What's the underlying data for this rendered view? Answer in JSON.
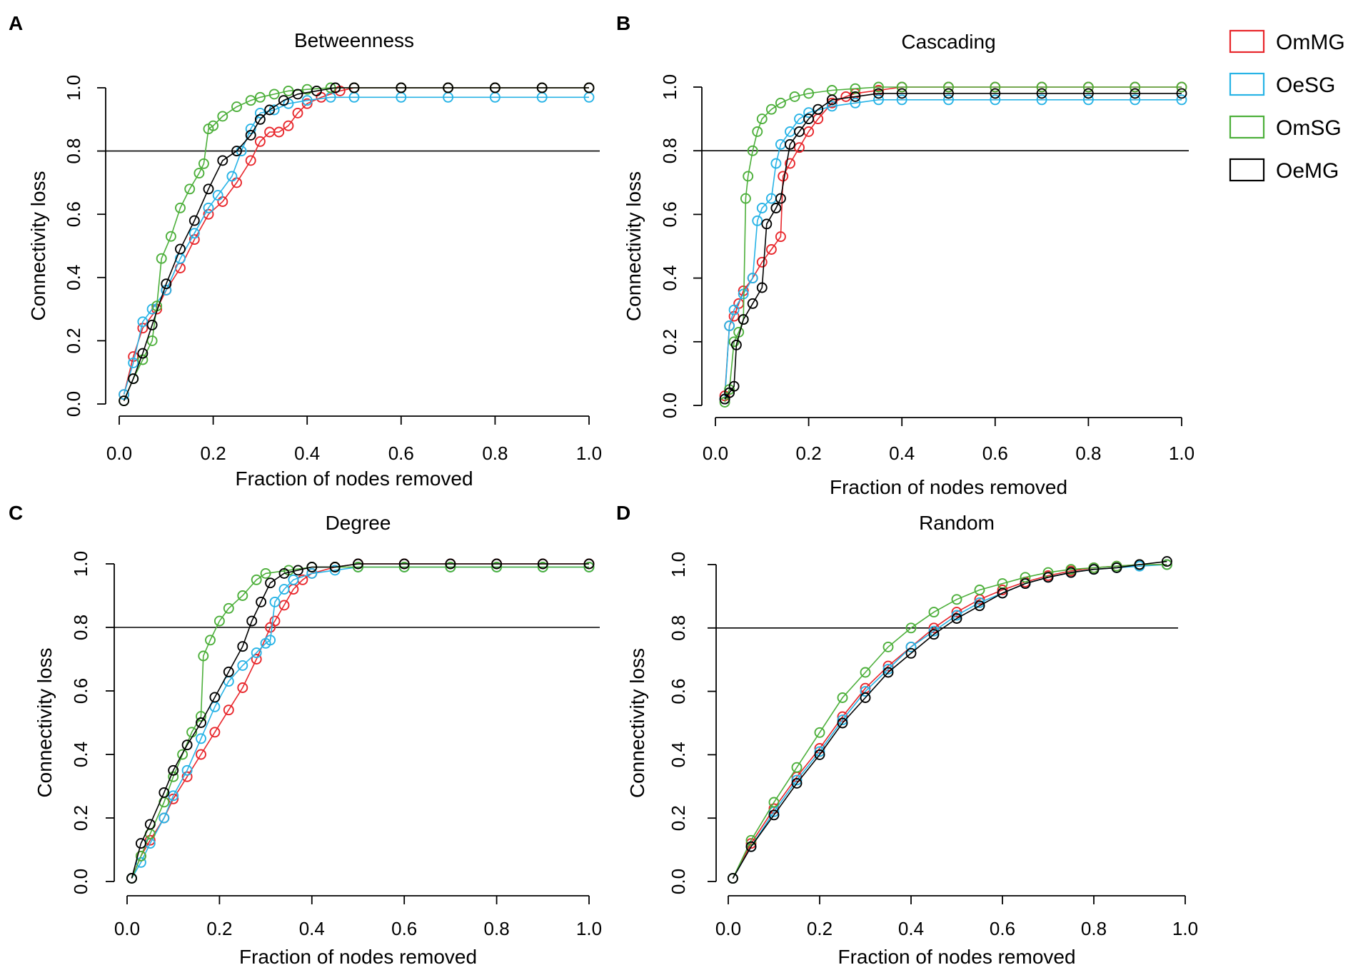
{
  "chart_data": [
    {
      "type": "scatter",
      "panel": "A",
      "title": "Betweenness",
      "xlabel": "Fraction of nodes removed",
      "ylabel": "Connectivity loss",
      "xlim": [
        0,
        1
      ],
      "ylim": [
        0,
        1
      ],
      "xticks": [
        "0.0",
        "0.2",
        "0.4",
        "0.6",
        "0.8",
        "1.0"
      ],
      "yticks": [
        "0.0",
        "0.2",
        "0.4",
        "0.6",
        "0.8",
        "1.0"
      ],
      "threshold": 0.8,
      "series": [
        {
          "name": "OmMG",
          "color": "#e8262b",
          "x": [
            0.01,
            0.03,
            0.05,
            0.08,
            0.1,
            0.13,
            0.16,
            0.19,
            0.22,
            0.25,
            0.28,
            0.3,
            0.32,
            0.34,
            0.36,
            0.38,
            0.4,
            0.43,
            0.47,
            0.5,
            0.6,
            0.7,
            0.8,
            0.9,
            1.0
          ],
          "y": [
            0.03,
            0.15,
            0.24,
            0.3,
            0.36,
            0.43,
            0.52,
            0.6,
            0.64,
            0.7,
            0.77,
            0.83,
            0.86,
            0.86,
            0.88,
            0.92,
            0.95,
            0.97,
            0.99,
            1.0,
            1.0,
            1.0,
            1.0,
            1.0,
            1.0
          ]
        },
        {
          "name": "OeSG",
          "color": "#27b3e6",
          "x": [
            0.01,
            0.03,
            0.05,
            0.07,
            0.1,
            0.13,
            0.16,
            0.19,
            0.21,
            0.24,
            0.26,
            0.28,
            0.3,
            0.33,
            0.36,
            0.4,
            0.45,
            0.5,
            0.6,
            0.7,
            0.8,
            0.9,
            1.0
          ],
          "y": [
            0.03,
            0.13,
            0.26,
            0.3,
            0.36,
            0.46,
            0.54,
            0.62,
            0.66,
            0.72,
            0.8,
            0.87,
            0.92,
            0.93,
            0.95,
            0.96,
            0.97,
            0.97,
            0.97,
            0.97,
            0.97,
            0.97,
            0.97
          ]
        },
        {
          "name": "OmSG",
          "color": "#4caf3a",
          "x": [
            0.01,
            0.03,
            0.05,
            0.07,
            0.08,
            0.09,
            0.11,
            0.13,
            0.15,
            0.17,
            0.18,
            0.19,
            0.2,
            0.22,
            0.25,
            0.28,
            0.3,
            0.33,
            0.36,
            0.4,
            0.45,
            0.5,
            0.6,
            0.7,
            0.8,
            0.9,
            1.0
          ],
          "y": [
            0.01,
            0.08,
            0.14,
            0.2,
            0.31,
            0.46,
            0.53,
            0.62,
            0.68,
            0.73,
            0.76,
            0.87,
            0.88,
            0.91,
            0.94,
            0.96,
            0.97,
            0.98,
            0.99,
            0.995,
            1.0,
            1.0,
            1.0,
            1.0,
            1.0,
            1.0,
            1.0
          ]
        },
        {
          "name": "OeMG",
          "color": "#000000",
          "x": [
            0.01,
            0.03,
            0.05,
            0.07,
            0.1,
            0.13,
            0.16,
            0.19,
            0.22,
            0.25,
            0.28,
            0.3,
            0.32,
            0.35,
            0.38,
            0.42,
            0.46,
            0.5,
            0.6,
            0.7,
            0.8,
            0.9,
            1.0
          ],
          "y": [
            0.01,
            0.08,
            0.16,
            0.25,
            0.38,
            0.49,
            0.58,
            0.68,
            0.77,
            0.8,
            0.85,
            0.9,
            0.93,
            0.96,
            0.98,
            0.99,
            1.0,
            1.0,
            1.0,
            1.0,
            1.0,
            1.0,
            1.0
          ]
        }
      ]
    },
    {
      "type": "scatter",
      "panel": "B",
      "title": "Cascading",
      "xlabel": "Fraction of nodes removed",
      "ylabel": "Connectivity loss",
      "xlim": [
        0,
        1
      ],
      "ylim": [
        0,
        1
      ],
      "xticks": [
        "0.0",
        "0.2",
        "0.4",
        "0.6",
        "0.8",
        "1.0"
      ],
      "yticks": [
        "0.0",
        "0.2",
        "0.4",
        "0.6",
        "0.8",
        "1.0"
      ],
      "threshold": 0.8,
      "series": [
        {
          "name": "OmMG",
          "color": "#e8262b",
          "x": [
            0.02,
            0.03,
            0.04,
            0.05,
            0.06,
            0.08,
            0.1,
            0.12,
            0.14,
            0.145,
            0.16,
            0.18,
            0.2,
            0.22,
            0.25,
            0.28,
            0.3,
            0.35,
            0.4,
            0.5,
            0.6,
            0.7,
            0.8,
            0.9,
            1.0
          ],
          "y": [
            0.03,
            0.25,
            0.28,
            0.32,
            0.36,
            0.4,
            0.45,
            0.49,
            0.53,
            0.72,
            0.76,
            0.81,
            0.86,
            0.9,
            0.95,
            0.97,
            0.98,
            0.99,
            1.0,
            1.0,
            1.0,
            1.0,
            1.0,
            1.0,
            1.0
          ]
        },
        {
          "name": "OeSG",
          "color": "#27b3e6",
          "x": [
            0.02,
            0.03,
            0.04,
            0.06,
            0.08,
            0.09,
            0.1,
            0.12,
            0.13,
            0.14,
            0.16,
            0.18,
            0.2,
            0.25,
            0.3,
            0.35,
            0.4,
            0.5,
            0.6,
            0.7,
            0.8,
            0.9,
            1.0
          ],
          "y": [
            0.02,
            0.25,
            0.3,
            0.35,
            0.4,
            0.58,
            0.62,
            0.65,
            0.76,
            0.82,
            0.86,
            0.9,
            0.92,
            0.94,
            0.95,
            0.96,
            0.96,
            0.96,
            0.96,
            0.96,
            0.96,
            0.96,
            0.96
          ]
        },
        {
          "name": "OmSG",
          "color": "#4caf3a",
          "x": [
            0.02,
            0.03,
            0.04,
            0.05,
            0.06,
            0.065,
            0.07,
            0.08,
            0.09,
            0.1,
            0.12,
            0.14,
            0.17,
            0.2,
            0.25,
            0.3,
            0.35,
            0.4,
            0.5,
            0.6,
            0.7,
            0.8,
            0.9,
            1.0
          ],
          "y": [
            0.01,
            0.05,
            0.2,
            0.23,
            0.27,
            0.65,
            0.72,
            0.8,
            0.86,
            0.9,
            0.93,
            0.95,
            0.97,
            0.98,
            0.99,
            0.995,
            1.0,
            1.0,
            1.0,
            1.0,
            1.0,
            1.0,
            1.0,
            1.0
          ]
        },
        {
          "name": "OeMG",
          "color": "#000000",
          "x": [
            0.02,
            0.03,
            0.04,
            0.045,
            0.06,
            0.08,
            0.1,
            0.11,
            0.13,
            0.14,
            0.16,
            0.18,
            0.2,
            0.22,
            0.25,
            0.3,
            0.35,
            0.4,
            0.5,
            0.6,
            0.7,
            0.8,
            0.9,
            1.0
          ],
          "y": [
            0.02,
            0.04,
            0.06,
            0.19,
            0.27,
            0.32,
            0.37,
            0.57,
            0.62,
            0.65,
            0.82,
            0.86,
            0.9,
            0.93,
            0.96,
            0.97,
            0.98,
            0.98,
            0.98,
            0.98,
            0.98,
            0.98,
            0.98,
            0.98
          ]
        }
      ]
    },
    {
      "type": "scatter",
      "panel": "C",
      "title": "Degree",
      "xlabel": "Fraction of nodes removed",
      "ylabel": "Connectivity loss",
      "xlim": [
        0,
        1
      ],
      "ylim": [
        0,
        1
      ],
      "xticks": [
        "0.0",
        "0.2",
        "0.4",
        "0.6",
        "0.8",
        "1.0"
      ],
      "yticks": [
        "0.0",
        "0.2",
        "0.4",
        "0.6",
        "0.8",
        "1.0"
      ],
      "threshold": 0.8,
      "series": [
        {
          "name": "OmMG",
          "color": "#e8262b",
          "x": [
            0.01,
            0.03,
            0.05,
            0.08,
            0.1,
            0.13,
            0.16,
            0.19,
            0.22,
            0.25,
            0.28,
            0.31,
            0.32,
            0.34,
            0.36,
            0.38,
            0.4,
            0.45,
            0.5,
            0.6,
            0.7,
            0.8,
            0.9,
            1.0
          ],
          "y": [
            0.01,
            0.08,
            0.13,
            0.2,
            0.26,
            0.33,
            0.4,
            0.47,
            0.54,
            0.61,
            0.7,
            0.8,
            0.82,
            0.87,
            0.92,
            0.95,
            0.97,
            0.99,
            1.0,
            1.0,
            1.0,
            1.0,
            1.0,
            1.0
          ]
        },
        {
          "name": "OeSG",
          "color": "#27b3e6",
          "x": [
            0.01,
            0.03,
            0.05,
            0.08,
            0.1,
            0.13,
            0.16,
            0.19,
            0.22,
            0.25,
            0.28,
            0.3,
            0.31,
            0.32,
            0.34,
            0.36,
            0.4,
            0.45,
            0.5,
            0.6,
            0.7,
            0.8,
            0.9,
            1.0
          ],
          "y": [
            0.01,
            0.06,
            0.12,
            0.2,
            0.27,
            0.35,
            0.45,
            0.55,
            0.63,
            0.68,
            0.72,
            0.75,
            0.76,
            0.88,
            0.92,
            0.95,
            0.97,
            0.98,
            0.99,
            0.99,
            0.99,
            0.99,
            0.99,
            0.99
          ]
        },
        {
          "name": "OmSG",
          "color": "#4caf3a",
          "x": [
            0.01,
            0.03,
            0.05,
            0.08,
            0.1,
            0.12,
            0.14,
            0.16,
            0.165,
            0.18,
            0.2,
            0.22,
            0.25,
            0.28,
            0.3,
            0.35,
            0.4,
            0.45,
            0.5,
            0.6,
            0.7,
            0.8,
            0.9,
            1.0
          ],
          "y": [
            0.01,
            0.08,
            0.15,
            0.25,
            0.33,
            0.4,
            0.47,
            0.52,
            0.71,
            0.76,
            0.82,
            0.86,
            0.9,
            0.95,
            0.97,
            0.98,
            0.99,
            0.99,
            0.99,
            0.99,
            0.99,
            0.99,
            0.99,
            0.99
          ]
        },
        {
          "name": "OeMG",
          "color": "#000000",
          "x": [
            0.01,
            0.03,
            0.05,
            0.08,
            0.1,
            0.13,
            0.16,
            0.19,
            0.22,
            0.25,
            0.27,
            0.29,
            0.31,
            0.34,
            0.37,
            0.4,
            0.45,
            0.5,
            0.6,
            0.7,
            0.8,
            0.9,
            1.0
          ],
          "y": [
            0.01,
            0.12,
            0.18,
            0.28,
            0.35,
            0.43,
            0.5,
            0.58,
            0.66,
            0.74,
            0.82,
            0.88,
            0.94,
            0.97,
            0.98,
            0.99,
            0.99,
            1.0,
            1.0,
            1.0,
            1.0,
            1.0,
            1.0
          ]
        }
      ]
    },
    {
      "type": "scatter",
      "panel": "D",
      "title": "Random",
      "xlabel": "Fraction of nodes removed",
      "ylabel": "Connectivity loss",
      "xlim": [
        0,
        1
      ],
      "ylim": [
        0,
        1
      ],
      "xticks": [
        "0.0",
        "0.2",
        "0.4",
        "0.6",
        "0.8",
        "1.0"
      ],
      "yticks": [
        "0.0",
        "0.2",
        "0.4",
        "0.6",
        "0.8",
        "1.0"
      ],
      "threshold": 0.8,
      "series": [
        {
          "name": "OmMG",
          "color": "#e8262b",
          "x": [
            0.01,
            0.05,
            0.1,
            0.15,
            0.2,
            0.25,
            0.3,
            0.35,
            0.4,
            0.45,
            0.5,
            0.55,
            0.6,
            0.65,
            0.7,
            0.75,
            0.8,
            0.85,
            0.9,
            0.96
          ],
          "y": [
            0.01,
            0.12,
            0.23,
            0.33,
            0.42,
            0.52,
            0.61,
            0.68,
            0.74,
            0.8,
            0.85,
            0.89,
            0.92,
            0.945,
            0.965,
            0.98,
            0.99,
            0.995,
            1.0,
            1.0
          ]
        },
        {
          "name": "OeSG",
          "color": "#27b3e6",
          "x": [
            0.01,
            0.05,
            0.1,
            0.15,
            0.2,
            0.25,
            0.3,
            0.35,
            0.4,
            0.45,
            0.5,
            0.55,
            0.6,
            0.65,
            0.7,
            0.75,
            0.8,
            0.85,
            0.9,
            0.96
          ],
          "y": [
            0.01,
            0.11,
            0.22,
            0.32,
            0.41,
            0.51,
            0.6,
            0.67,
            0.74,
            0.79,
            0.84,
            0.88,
            0.91,
            0.94,
            0.96,
            0.975,
            0.985,
            0.99,
            0.995,
            1.0
          ]
        },
        {
          "name": "OmSG",
          "color": "#4caf3a",
          "x": [
            0.01,
            0.05,
            0.1,
            0.15,
            0.2,
            0.25,
            0.3,
            0.35,
            0.4,
            0.45,
            0.5,
            0.55,
            0.6,
            0.65,
            0.7,
            0.75,
            0.8,
            0.85,
            0.9,
            0.96
          ],
          "y": [
            0.01,
            0.13,
            0.25,
            0.36,
            0.47,
            0.58,
            0.66,
            0.74,
            0.8,
            0.85,
            0.89,
            0.92,
            0.94,
            0.96,
            0.975,
            0.985,
            0.99,
            0.995,
            1.0,
            1.0
          ]
        },
        {
          "name": "OeMG",
          "color": "#000000",
          "x": [
            0.01,
            0.05,
            0.1,
            0.15,
            0.2,
            0.25,
            0.3,
            0.35,
            0.4,
            0.45,
            0.5,
            0.55,
            0.6,
            0.65,
            0.7,
            0.75,
            0.8,
            0.85,
            0.9,
            0.96
          ],
          "y": [
            0.01,
            0.11,
            0.21,
            0.31,
            0.4,
            0.5,
            0.58,
            0.66,
            0.72,
            0.78,
            0.83,
            0.87,
            0.91,
            0.94,
            0.96,
            0.975,
            0.985,
            0.99,
            1.0,
            1.01
          ]
        }
      ]
    }
  ],
  "legend": {
    "items": [
      {
        "label": "OmMG",
        "color": "#e8262b"
      },
      {
        "label": "OeSG",
        "color": "#27b3e6"
      },
      {
        "label": "OmSG",
        "color": "#4caf3a"
      },
      {
        "label": "OeMG",
        "color": "#000000"
      }
    ]
  }
}
